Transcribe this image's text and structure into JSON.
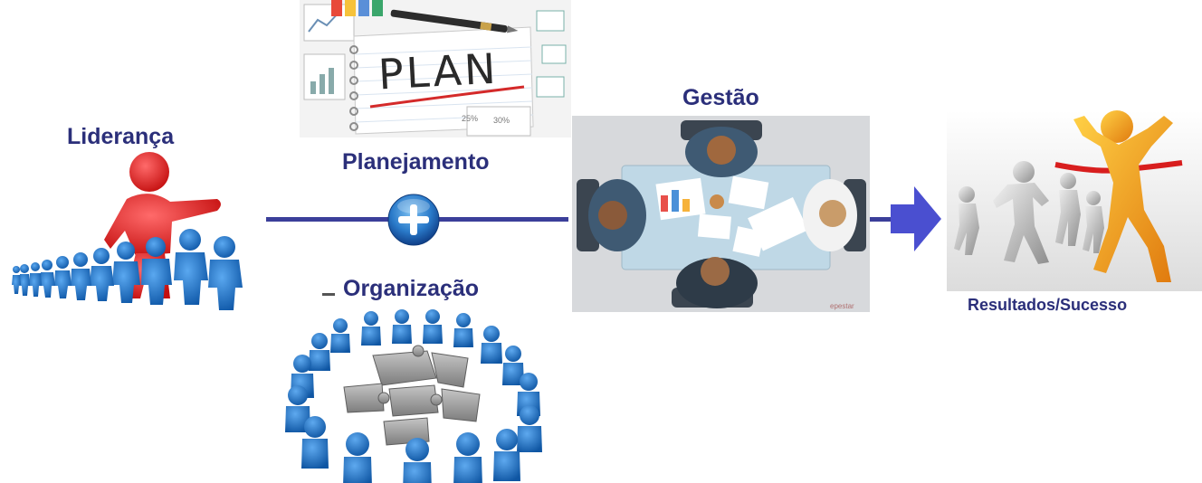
{
  "labels": {
    "leadership": "Liderança",
    "planning": "Planejamento",
    "organization": "Organização",
    "management": "Gestão",
    "results": "Resultados/Sucesso"
  },
  "plan_card": {
    "title": "PLAN",
    "chart_text_1": "25%",
    "chart_text_2": "30%"
  },
  "colors": {
    "label_text": "#2b2f7a",
    "connector": "#3b3f9a",
    "arrow": "#4a4fd0",
    "leader_red": "#e11e1e",
    "people_blue": "#1f6fc4",
    "puzzle_gray": "#9a9a9a",
    "winner_orange": "#f39a1a",
    "runner_gray": "#bfbfbf"
  },
  "icons": {
    "plus": "plus-icon",
    "arrow": "arrow-right-icon"
  }
}
